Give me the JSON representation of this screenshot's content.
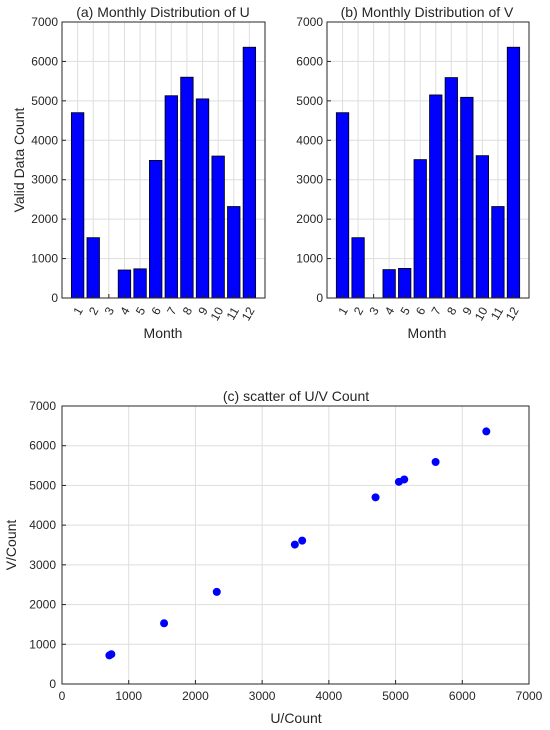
{
  "chart_data": [
    {
      "type": "bar",
      "title": "(a) Monthly Distribution of U",
      "xlabel": "Month",
      "ylabel": "Valid Data Count",
      "categories": [
        "1",
        "2",
        "3",
        "4",
        "5",
        "6",
        "7",
        "8",
        "9",
        "10",
        "11",
        "12"
      ],
      "values": [
        4700,
        1530,
        0,
        710,
        740,
        3490,
        5130,
        5600,
        5050,
        3600,
        2320,
        6360
      ],
      "ylim": [
        0,
        7000
      ],
      "yticks": [
        0,
        1000,
        2000,
        3000,
        4000,
        5000,
        6000,
        7000
      ],
      "grid": true,
      "bar_color": "#0000ff"
    },
    {
      "type": "bar",
      "title": "(b) Monthly Distribution of V",
      "xlabel": "Month",
      "ylabel": "",
      "categories": [
        "1",
        "2",
        "3",
        "4",
        "5",
        "6",
        "7",
        "8",
        "9",
        "10",
        "11",
        "12"
      ],
      "values": [
        4700,
        1530,
        0,
        720,
        750,
        3510,
        5150,
        5590,
        5090,
        3610,
        2320,
        6360
      ],
      "ylim": [
        0,
        7000
      ],
      "yticks": [
        0,
        1000,
        2000,
        3000,
        4000,
        5000,
        6000,
        7000
      ],
      "grid": true,
      "bar_color": "#0000ff"
    },
    {
      "type": "scatter",
      "title": "(c) scatter of U/V Count",
      "xlabel": "U/Count",
      "ylabel": "V/Count",
      "x": [
        4700,
        1530,
        710,
        740,
        3490,
        5130,
        5600,
        5050,
        3600,
        2320,
        6360
      ],
      "y": [
        4700,
        1530,
        720,
        750,
        3510,
        5150,
        5590,
        5090,
        3610,
        2320,
        6360
      ],
      "xlim": [
        0,
        7000
      ],
      "ylim": [
        0,
        7000
      ],
      "xticks": [
        0,
        1000,
        2000,
        3000,
        4000,
        5000,
        6000,
        7000
      ],
      "yticks": [
        0,
        1000,
        2000,
        3000,
        4000,
        5000,
        6000,
        7000
      ],
      "grid": true,
      "marker_color": "#0000ff"
    }
  ]
}
